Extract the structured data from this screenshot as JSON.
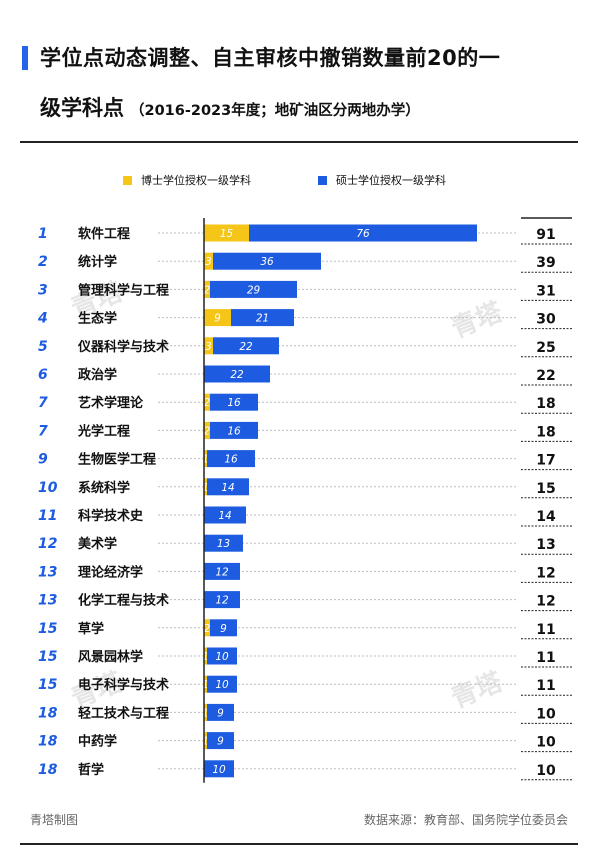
{
  "title": {
    "line1": "学位点动态调整、自主审核中撤销数量前20的一",
    "line2_main": "级学科点",
    "line2_sub": "（2016-2023年度；地矿油区分两地办学）"
  },
  "legend": {
    "doctoral": "博士学位授权一级学科",
    "master": "硕士学位授权一级学科"
  },
  "colors": {
    "doctoral": "#f5c518",
    "master": "#1d5be0",
    "accent": "#2563eb"
  },
  "footer": {
    "left": "青塔制图",
    "right": "数据来源：教育部、国务院学位委员会"
  },
  "watermark": "青塔",
  "chart_data": {
    "type": "bar",
    "orientation": "horizontal",
    "stacked": true,
    "categories": [
      "软件工程",
      "统计学",
      "管理科学与工程",
      "生态学",
      "仪器科学与技术",
      "政治学",
      "艺术学理论",
      "光学工程",
      "生物医学工程",
      "系统科学",
      "科学技术史",
      "美术学",
      "理论经济学",
      "化学工程与技术",
      "草学",
      "风景园林学",
      "电子科学与技术",
      "轻工技术与工程",
      "中药学",
      "哲学"
    ],
    "ranks": [
      "1",
      "2",
      "3",
      "4",
      "5",
      "6",
      "7",
      "7",
      "9",
      "10",
      "11",
      "12",
      "13",
      "13",
      "15",
      "15",
      "15",
      "18",
      "18",
      "18"
    ],
    "series": [
      {
        "name": "博士学位授权一级学科",
        "color": "#f5c518",
        "values": [
          15,
          3,
          2,
          9,
          3,
          0,
          2,
          2,
          1,
          1,
          0,
          0,
          0,
          0,
          2,
          1,
          1,
          1,
          1,
          0
        ]
      },
      {
        "name": "硕士学位授权一级学科",
        "color": "#1d5be0",
        "values": [
          76,
          36,
          29,
          21,
          22,
          22,
          16,
          16,
          16,
          14,
          14,
          13,
          12,
          12,
          9,
          10,
          10,
          9,
          9,
          10
        ]
      }
    ],
    "totals": [
      91,
      39,
      31,
      30,
      25,
      22,
      18,
      18,
      17,
      15,
      14,
      13,
      12,
      12,
      11,
      11,
      11,
      10,
      10,
      10
    ]
  }
}
